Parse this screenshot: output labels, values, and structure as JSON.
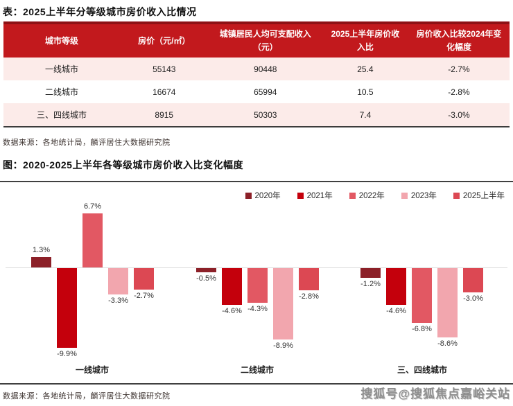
{
  "table_section": {
    "title": "表：2025上半年分等级城市房价收入比情况",
    "source": "数据来源：各地统计局，麟评居住大数据研究院",
    "table": {
      "headers": [
        "城市等级",
        "房价（元/㎡）",
        "城镇居民人均可支配收入（元）",
        "2025上半年房价收入比",
        "房价收入比较2024年变化幅度"
      ],
      "rows": [
        [
          "一线城市",
          "55143",
          "90448",
          "25.4",
          "-2.7%"
        ],
        [
          "二线城市",
          "16674",
          "65994",
          "10.5",
          "-2.8%"
        ],
        [
          "三、四线城市",
          "8915",
          "50303",
          "7.4",
          "-3.0%"
        ]
      ],
      "header_bg": "#c2191d",
      "header_top_border": "#8e1115",
      "header_text_color": "#ffffff",
      "row_alt_bg": "#fcebe9"
    }
  },
  "chart_section": {
    "title": "图：2020-2025上半年各等级城市房价收入比变化幅度",
    "source": "数据来源：各地统计局，麟评居住大数据研究院"
  },
  "chart_data": {
    "type": "bar",
    "title": "2020-2025上半年各等级城市房价收入比变化幅度",
    "categories": [
      "一线城市",
      "二线城市",
      "三、四线城市"
    ],
    "series": [
      {
        "name": "2020年",
        "color": "#8c2028",
        "values": [
          1.3,
          -0.5,
          -1.2
        ]
      },
      {
        "name": "2021年",
        "color": "#c4000c",
        "values": [
          -9.9,
          -4.6,
          -4.6
        ]
      },
      {
        "name": "2022年",
        "color": "#e25863",
        "values": [
          6.7,
          -4.3,
          -6.8
        ]
      },
      {
        "name": "2023年",
        "color": "#f2a6ae",
        "values": [
          -3.3,
          -8.9,
          -8.6
        ]
      },
      {
        "name": "2025上半年",
        "color": "#dc4853",
        "values": [
          -2.7,
          -2.8,
          -3.0
        ]
      }
    ],
    "value_suffix": "%",
    "ylim": [
      -10.5,
      7.5
    ],
    "legend_position": "top-right",
    "grid": false,
    "zero_line_color": "#dcdcdc"
  },
  "watermark": "搜狐号@搜狐焦点嘉峪关站"
}
